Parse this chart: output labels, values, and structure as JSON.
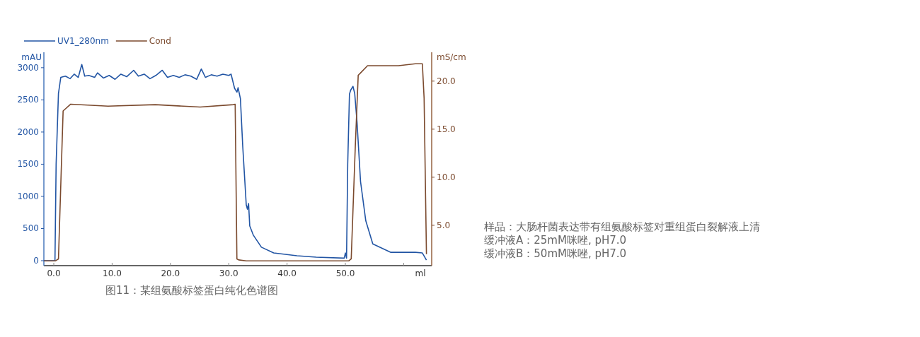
{
  "chart_data": {
    "type": "line",
    "title": "图11：某组氨酸标签蛋白纯化色谱图",
    "xlabel": "ml",
    "ylabel": "mAU",
    "y2label": "mS/cm",
    "annotations": [
      "样品：大肠杆菌表达带有组氨酸标签对重组蛋白裂解液上清",
      "缓冲液A：25mM咪唑, pH7.0",
      "缓冲液B：50mM咪唑, pH7.0"
    ],
    "xlim": [
      -1.7,
      64.8
    ],
    "xticks": [
      {
        "value": 0,
        "label": "0.0"
      },
      {
        "value": 10,
        "label": "10.0"
      },
      {
        "value": 20,
        "label": "20.0"
      },
      {
        "value": 30,
        "label": "30.0"
      },
      {
        "value": 40,
        "label": "40.0"
      },
      {
        "value": 50,
        "label": "50.0"
      },
      {
        "value": 60,
        "label": null
      }
    ],
    "ylim": [
      -77,
      3240
    ],
    "yticks": [
      0,
      500,
      1000,
      1500,
      2000,
      2500,
      3000
    ],
    "y2lim": [
      0.8,
      23.0
    ],
    "y2ticks": [
      {
        "value": 5,
        "label": "5.0"
      },
      {
        "value": 10,
        "label": "10.0"
      },
      {
        "value": 15,
        "label": "15.0"
      },
      {
        "value": 20,
        "label": "20.0"
      }
    ],
    "legend": "top left",
    "grid": false,
    "series": [
      {
        "name": "UV1_280nm",
        "color": "#2255a4",
        "x": [
          -1.7,
          0.2,
          0.4,
          0.8,
          1.2,
          2,
          2.8,
          3.5,
          4.2,
          4.8,
          5.3,
          6,
          7,
          7.5,
          8.5,
          9.5,
          10.5,
          11.5,
          12.5,
          13.7,
          14.5,
          15.5,
          16.5,
          17.5,
          18.6,
          19.5,
          20.5,
          21.5,
          22.5,
          23.5,
          24.5,
          25.3,
          26,
          27,
          28,
          29,
          30,
          30.4,
          31.0,
          31.4,
          31.6,
          32.0,
          32.4,
          33.0,
          33.2,
          33.4,
          33.6,
          34.2,
          35.6,
          37.7,
          41.7,
          45.0,
          49.8,
          50.0,
          50.2,
          50.4,
          50.7,
          50.9,
          51.3,
          51.6,
          52.0,
          52.6,
          53.5,
          54.7,
          57.8,
          62.0,
          63.2,
          63.9
        ],
        "values": [
          0,
          0,
          1500,
          2600,
          2850,
          2870,
          2830,
          2900,
          2850,
          3050,
          2870,
          2880,
          2850,
          2920,
          2840,
          2880,
          2820,
          2900,
          2860,
          2960,
          2870,
          2900,
          2830,
          2880,
          2960,
          2850,
          2880,
          2850,
          2890,
          2870,
          2820,
          2980,
          2850,
          2890,
          2870,
          2900,
          2880,
          2900,
          2680,
          2620,
          2690,
          2520,
          1780,
          870,
          800,
          890,
          540,
          400,
          210,
          120,
          77,
          55,
          40,
          120,
          40,
          1500,
          2590,
          2650,
          2710,
          2600,
          2150,
          1230,
          620,
          260,
          130,
          130,
          120,
          10
        ],
        "axis": "y"
      },
      {
        "name": "Cond",
        "color": "#7b4a2e",
        "x": [
          -1.7,
          0.3,
          0.8,
          1.6,
          2.9,
          9.3,
          17.4,
          25.1,
          30.8,
          31.1,
          31.4,
          31.7,
          33,
          50.6,
          51.0,
          51.7,
          52.2,
          53.8,
          59.1,
          62.0,
          63.2,
          63.5,
          63.9
        ],
        "values": [
          1.3,
          1.3,
          1.5,
          16.9,
          17.6,
          17.4,
          17.55,
          17.3,
          17.55,
          17.6,
          1.5,
          1.4,
          1.3,
          1.3,
          1.5,
          13.2,
          20.6,
          21.6,
          21.6,
          21.8,
          21.8,
          18.2,
          2.0
        ],
        "axis": "y2"
      }
    ]
  }
}
